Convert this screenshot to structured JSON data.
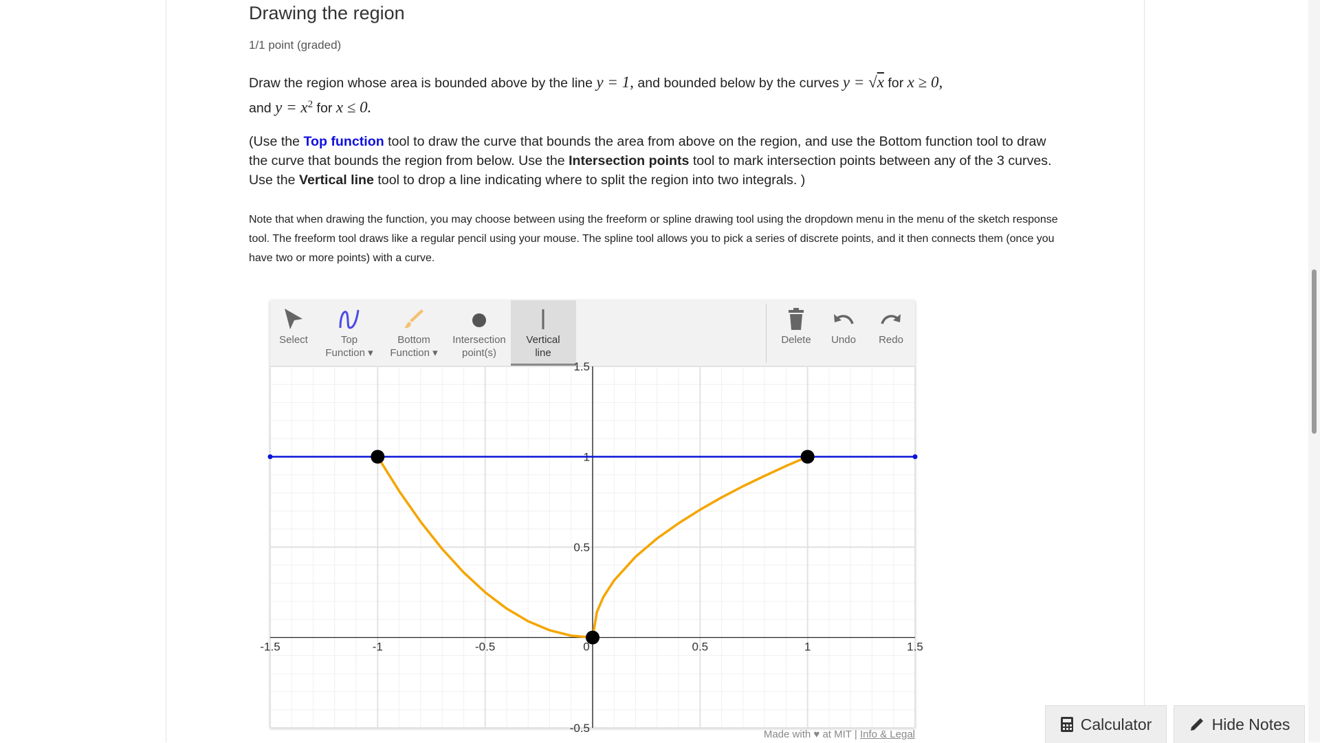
{
  "header": {
    "title": "Drawing the region",
    "score": "1/1 point (graded)"
  },
  "prompt": [
    "Draw the region whose area is bounded above by the line ",
    "y = 1,",
    " and bounded below by the curves ",
    "y = ",
    "√",
    "x",
    " for ",
    "x ≥ 0,",
    " and ",
    "y = x",
    "2",
    " for ",
    "x ≤ 0."
  ],
  "instructions": [
    "(Use the ",
    "Top function",
    " tool to draw the curve that bounds the area from above on the region, and use the Bottom function tool to draw the curve that bounds the region from below. Use the ",
    "Intersection points",
    " tool to mark intersection points between any of the 3 curves. Use the ",
    "Vertical line",
    " tool to drop a line indicating where to split the region into two integrals. )"
  ],
  "note": "Note that when drawing the function, you may choose between using the freeform or spline drawing tool using the dropdown menu in the menu of the sketch response tool. The freeform tool draws like a regular pencil using your mouse. The spline tool allows you to pick a series of discrete points, and it then connects them (once you have two or more points) with a curve.",
  "toolbar": {
    "tools": [
      [
        "Select"
      ],
      [
        "Top",
        "Function ▾"
      ],
      [
        "Bottom",
        "Function ▾"
      ],
      [
        "Intersection",
        "point(s)"
      ],
      [
        "Vertical",
        "line"
      ]
    ],
    "actions": [
      "Delete",
      "Undo",
      "Redo"
    ]
  },
  "graph": {
    "xlim": [
      -1.5,
      1.5
    ],
    "ylim": [
      -0.5,
      1.5
    ],
    "xticks": [
      -1.5,
      -1,
      -0.5,
      0,
      0.5,
      1,
      1.5
    ],
    "yticks": [
      -0.5,
      0.5,
      1,
      1.5
    ],
    "top": {
      "color": "#0a14d8",
      "x": [
        -1.5,
        1.5
      ],
      "y": [
        1,
        1
      ]
    },
    "bottom": [
      {
        "color": "#f5a500",
        "x": [
          -1,
          -0.9,
          -0.8,
          -0.7,
          -0.6,
          -0.5,
          -0.4,
          -0.3,
          -0.2,
          -0.1,
          0
        ],
        "y": [
          1,
          0.81,
          0.64,
          0.49,
          0.36,
          0.25,
          0.16,
          0.09,
          0.04,
          0.01,
          0
        ]
      },
      {
        "color": "#f5a500",
        "x": [
          0,
          0.02,
          0.05,
          0.1,
          0.2,
          0.3,
          0.4,
          0.5,
          0.6,
          0.7,
          0.8,
          0.9,
          1
        ],
        "y": [
          0,
          0.141,
          0.224,
          0.316,
          0.447,
          0.548,
          0.632,
          0.707,
          0.775,
          0.837,
          0.894,
          0.949,
          1
        ]
      }
    ],
    "intersections": {
      "x": [
        -1,
        0,
        1
      ],
      "y": [
        1,
        0,
        1
      ]
    },
    "vertical_line": {
      "x": 0
    }
  },
  "footer": [
    "Made with ♥ at MIT",
    "|",
    "Info & Legal"
  ],
  "buttons": [
    "Calculator",
    "Hide Notes"
  ]
}
